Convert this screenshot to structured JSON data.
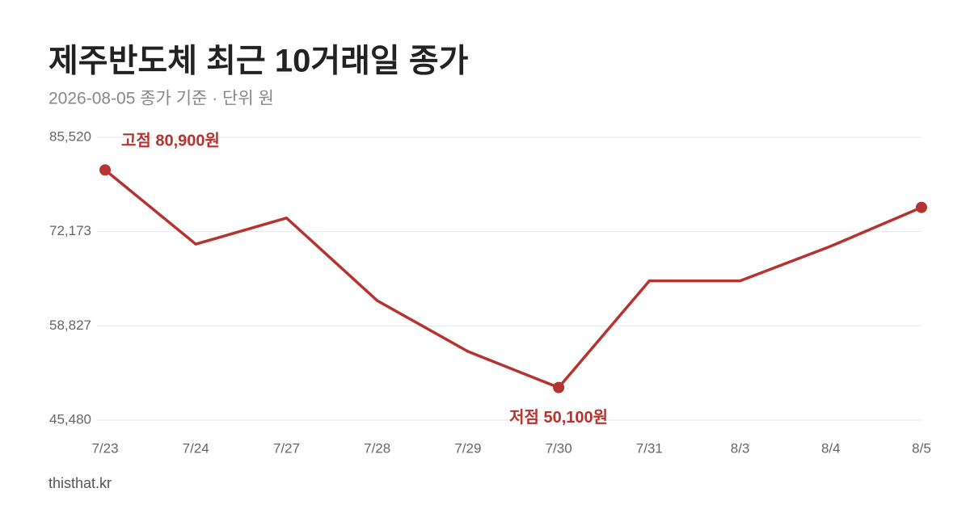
{
  "chart_data": {
    "type": "line",
    "title": "제주반도체 최근 10거래일 종가",
    "subtitle": "2026-08-05 종가 기준 · 단위 원",
    "source": "thisthat.kr",
    "categories": [
      "7/23",
      "7/24",
      "7/27",
      "7/28",
      "7/29",
      "7/30",
      "7/31",
      "8/3",
      "8/4",
      "8/5"
    ],
    "series": [
      {
        "name": "종가",
        "color": "#b5342f",
        "values": [
          80900,
          70400,
          74100,
          62400,
          55200,
          50100,
          65200,
          65200,
          70100,
          75600
        ]
      }
    ],
    "ylim": [
      45480,
      85520
    ],
    "yticks": [
      {
        "value": 45480,
        "label": "45,480"
      },
      {
        "value": 58827,
        "label": "58,827"
      },
      {
        "value": 72173,
        "label": "72,173"
      },
      {
        "value": 85520,
        "label": "85,520"
      }
    ],
    "grid": true,
    "annotations": [
      "고점 80,900원",
      "저점 50,100원"
    ]
  }
}
